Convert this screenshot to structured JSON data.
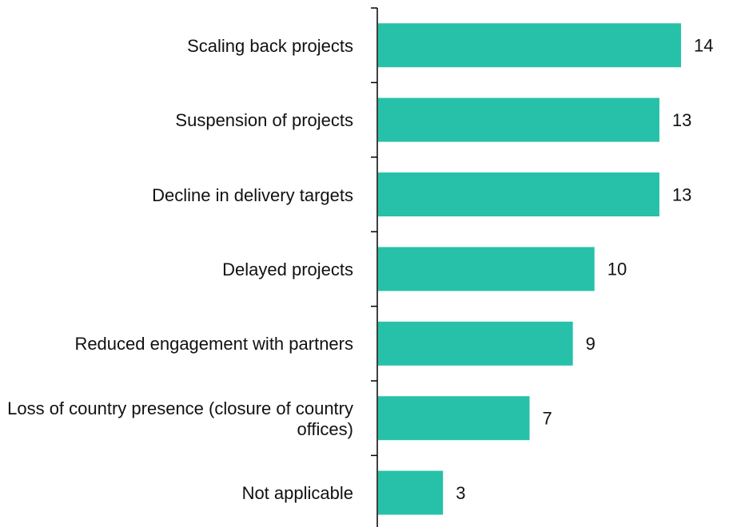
{
  "chart_data": {
    "type": "bar",
    "orientation": "horizontal",
    "categories": [
      "Scaling back projects",
      "Suspension of projects",
      "Decline in delivery targets",
      "Delayed projects",
      "Reduced engagement with partners",
      "Loss of country presence (closure of country offices)",
      "Not applicable"
    ],
    "values": [
      14,
      13,
      13,
      10,
      9,
      7,
      3
    ],
    "color": "#26c1a8"
  }
}
